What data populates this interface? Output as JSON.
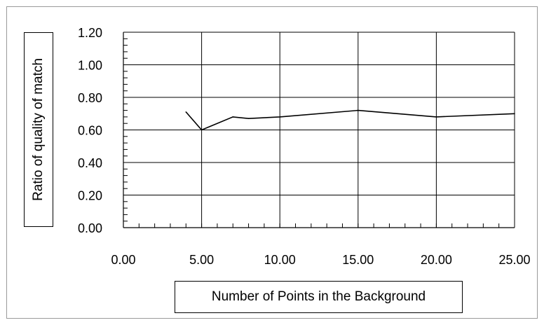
{
  "chart_data": {
    "type": "line",
    "xlabel": "Number of Points in the Background",
    "ylabel": "Ratio of quality of match",
    "xlim": [
      0,
      25
    ],
    "ylim": [
      0,
      1.2
    ],
    "x_ticks": [
      "0.00",
      "5.00",
      "10.00",
      "15.00",
      "20.00",
      "25.00"
    ],
    "y_ticks": [
      "0.00",
      "0.20",
      "0.40",
      "0.60",
      "0.80",
      "1.00",
      "1.20"
    ],
    "grid": true,
    "series": [
      {
        "x": [
          4,
          5,
          7,
          8,
          10,
          15,
          20,
          25
        ],
        "y": [
          0.71,
          0.6,
          0.68,
          0.67,
          0.68,
          0.72,
          0.68,
          0.7
        ]
      }
    ],
    "line_color": "#000000"
  }
}
